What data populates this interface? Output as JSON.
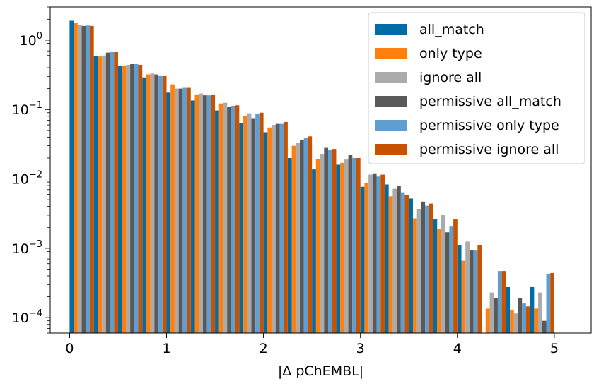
{
  "chart_data": {
    "type": "bar",
    "title": "",
    "xlabel": "|Δ pChEMBL|",
    "ylabel": "",
    "y_scale": "log",
    "ylim": [
      6e-05,
      3
    ],
    "xlim": [
      -0.2,
      5.38
    ],
    "bin_width": 0.25,
    "x_ticks": [
      0,
      1,
      2,
      3,
      4,
      5
    ],
    "x_tick_labels": [
      "0",
      "1",
      "2",
      "3",
      "4",
      "5"
    ],
    "y_ticks": [
      0.0001,
      0.001,
      0.01,
      0.1,
      1
    ],
    "y_tick_labels": [
      {
        "base": "10",
        "exp": "−4"
      },
      {
        "base": "10",
        "exp": "−3"
      },
      {
        "base": "10",
        "exp": "−2"
      },
      {
        "base": "10",
        "exp": "−1"
      },
      {
        "base": "10",
        "exp": "0"
      }
    ],
    "grid": false,
    "legend_position": "top-right",
    "bin_starts": [
      0,
      0.25,
      0.5,
      0.75,
      1.0,
      1.25,
      1.5,
      1.75,
      2.0,
      2.25,
      2.5,
      2.75,
      3.0,
      3.25,
      3.5,
      3.75,
      4.0,
      4.25,
      4.5,
      4.75,
      5.0
    ],
    "series": [
      {
        "name": "all_match",
        "color": "#006BA4",
        "values": [
          1.9,
          0.59,
          0.42,
          0.29,
          0.175,
          0.135,
          0.097,
          0.063,
          0.047,
          0.02,
          0.0137,
          0.016,
          0.0077,
          0.0083,
          0.0052,
          0.0026,
          0.00112,
          null,
          0.00028,
          0.00028,
          null
        ]
      },
      {
        "name": "only type",
        "color": "#FF800E",
        "values": [
          1.75,
          0.58,
          0.43,
          0.32,
          0.23,
          0.165,
          0.122,
          0.08,
          0.055,
          0.03,
          0.0195,
          0.017,
          0.0087,
          0.0056,
          0.0027,
          0.0019,
          0.00066,
          0.000135,
          0.00013,
          0.000135,
          null
        ]
      },
      {
        "name": "ignore all",
        "color": "#ABABAB",
        "values": [
          1.65,
          0.6,
          0.44,
          0.33,
          0.2,
          0.17,
          0.125,
          0.088,
          0.06,
          0.033,
          0.023,
          0.019,
          0.0115,
          0.0072,
          0.0037,
          0.003,
          0.00125,
          0.00023,
          0.000115,
          0.00023,
          null
        ]
      },
      {
        "name": "permissive all_match",
        "color": "#595959",
        "values": [
          1.6,
          0.66,
          0.46,
          0.32,
          0.2,
          0.16,
          0.108,
          0.075,
          0.062,
          0.036,
          0.028,
          0.022,
          0.012,
          0.008,
          0.0047,
          0.0017,
          0.00095,
          0.00019,
          0.00019,
          9e-05,
          null
        ]
      },
      {
        "name": "permissive only type",
        "color": "#5F9ED1",
        "values": [
          1.62,
          0.67,
          0.45,
          0.31,
          0.21,
          0.16,
          0.113,
          0.087,
          0.062,
          0.039,
          0.026,
          0.02,
          0.0108,
          0.0064,
          0.0041,
          0.0021,
          0.00095,
          0.00047,
          0.00016,
          0.00043,
          null
        ]
      },
      {
        "name": "permissive ignore all",
        "color": "#C85200",
        "values": [
          1.6,
          0.67,
          0.44,
          0.31,
          0.21,
          0.165,
          0.115,
          0.09,
          0.066,
          0.041,
          0.027,
          0.02,
          0.0115,
          0.0058,
          0.0044,
          0.0026,
          0.00112,
          0.00047,
          0.000145,
          0.00044,
          null
        ]
      }
    ]
  }
}
